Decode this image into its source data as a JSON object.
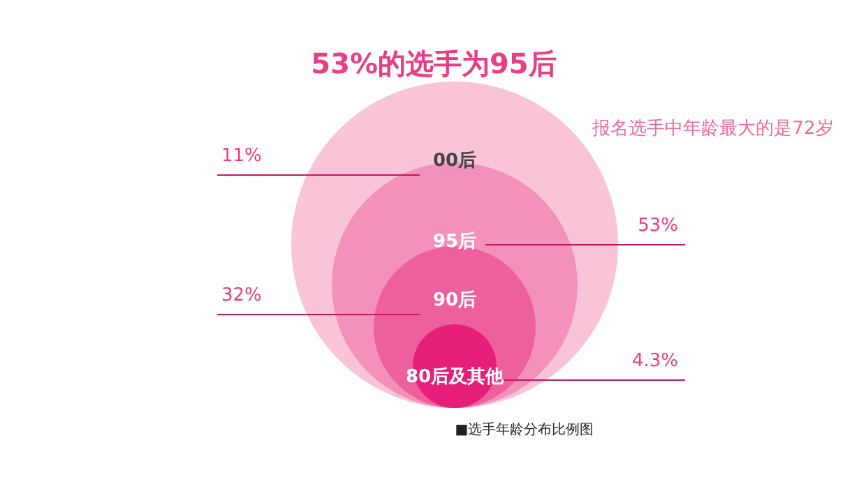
{
  "chart_data": {
    "type": "other",
    "title": "53%的选手为95后",
    "categories": [
      "00后",
      "95后",
      "90后",
      "80后及其他"
    ],
    "values": [
      11,
      53,
      32,
      4.3
    ],
    "value_labels": [
      "11%",
      "53%",
      "32%",
      "4.3%"
    ],
    "colors": [
      "#f9c3d8",
      "#f491ba",
      "#ee609d",
      "#e6207a"
    ],
    "annotations": [
      "报名选手中年龄最大的是72岁",
      "■选手年龄分布比例图"
    ]
  }
}
